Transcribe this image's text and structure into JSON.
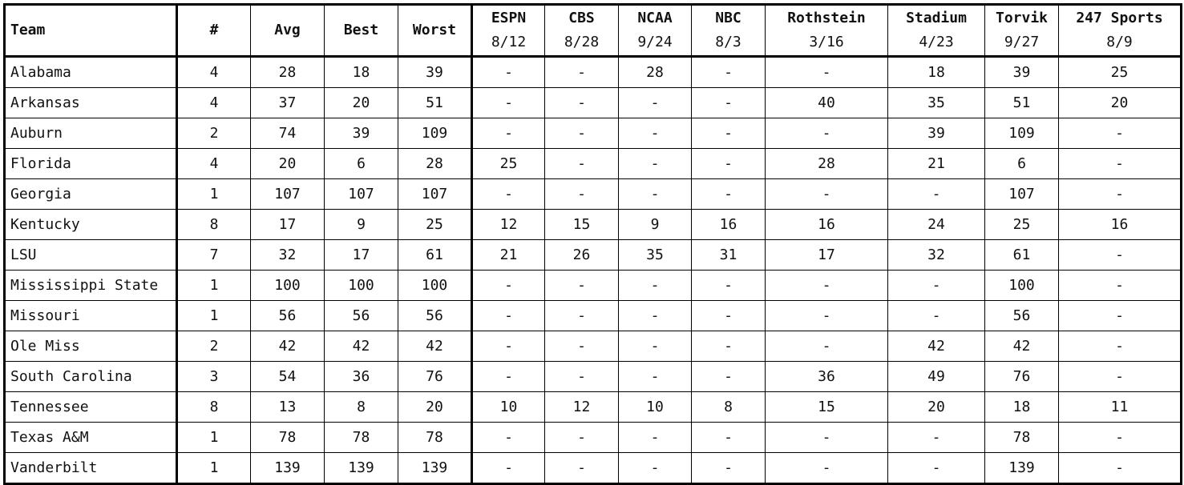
{
  "headers": {
    "team": "Team",
    "count": "#",
    "avg": "Avg",
    "best": "Best",
    "worst": "Worst",
    "sources": [
      {
        "name": "ESPN",
        "date": "8/12"
      },
      {
        "name": "CBS",
        "date": "8/28"
      },
      {
        "name": "NCAA",
        "date": "9/24"
      },
      {
        "name": "NBC",
        "date": "8/3"
      },
      {
        "name": "Rothstein",
        "date": "3/16"
      },
      {
        "name": "Stadium",
        "date": "4/23"
      },
      {
        "name": "Torvik",
        "date": "9/27"
      },
      {
        "name": "247 Sports",
        "date": "8/9"
      }
    ]
  },
  "rows": [
    {
      "team": "Alabama",
      "cells": [
        "4",
        "28",
        "18",
        "39",
        "-",
        "-",
        "28",
        "-",
        "-",
        "18",
        "39",
        "25"
      ]
    },
    {
      "team": "Arkansas",
      "cells": [
        "4",
        "37",
        "20",
        "51",
        "-",
        "-",
        "-",
        "-",
        "40",
        "35",
        "51",
        "20"
      ]
    },
    {
      "team": "Auburn",
      "cells": [
        "2",
        "74",
        "39",
        "109",
        "-",
        "-",
        "-",
        "-",
        "-",
        "39",
        "109",
        "-"
      ]
    },
    {
      "team": "Florida",
      "cells": [
        "4",
        "20",
        "6",
        "28",
        "25",
        "-",
        "-",
        "-",
        "28",
        "21",
        "6",
        "-"
      ]
    },
    {
      "team": "Georgia",
      "cells": [
        "1",
        "107",
        "107",
        "107",
        "-",
        "-",
        "-",
        "-",
        "-",
        "-",
        "107",
        "-"
      ]
    },
    {
      "team": "Kentucky",
      "cells": [
        "8",
        "17",
        "9",
        "25",
        "12",
        "15",
        "9",
        "16",
        "16",
        "24",
        "25",
        "16"
      ]
    },
    {
      "team": "LSU",
      "cells": [
        "7",
        "32",
        "17",
        "61",
        "21",
        "26",
        "35",
        "31",
        "17",
        "32",
        "61",
        "-"
      ]
    },
    {
      "team": "Mississippi State",
      "cells": [
        "1",
        "100",
        "100",
        "100",
        "-",
        "-",
        "-",
        "-",
        "-",
        "-",
        "100",
        "-"
      ]
    },
    {
      "team": "Missouri",
      "cells": [
        "1",
        "56",
        "56",
        "56",
        "-",
        "-",
        "-",
        "-",
        "-",
        "-",
        "56",
        "-"
      ]
    },
    {
      "team": "Ole Miss",
      "cells": [
        "2",
        "42",
        "42",
        "42",
        "-",
        "-",
        "-",
        "-",
        "-",
        "42",
        "42",
        "-"
      ]
    },
    {
      "team": "South Carolina",
      "cells": [
        "3",
        "54",
        "36",
        "76",
        "-",
        "-",
        "-",
        "-",
        "36",
        "49",
        "76",
        "-"
      ]
    },
    {
      "team": "Tennessee",
      "cells": [
        "8",
        "13",
        "8",
        "20",
        "10",
        "12",
        "10",
        "8",
        "15",
        "20",
        "18",
        "11"
      ]
    },
    {
      "team": "Texas A&M",
      "cells": [
        "1",
        "78",
        "78",
        "78",
        "-",
        "-",
        "-",
        "-",
        "-",
        "-",
        "78",
        "-"
      ]
    },
    {
      "team": "Vanderbilt",
      "cells": [
        "1",
        "139",
        "139",
        "139",
        "-",
        "-",
        "-",
        "-",
        "-",
        "-",
        "139",
        "-"
      ]
    }
  ]
}
